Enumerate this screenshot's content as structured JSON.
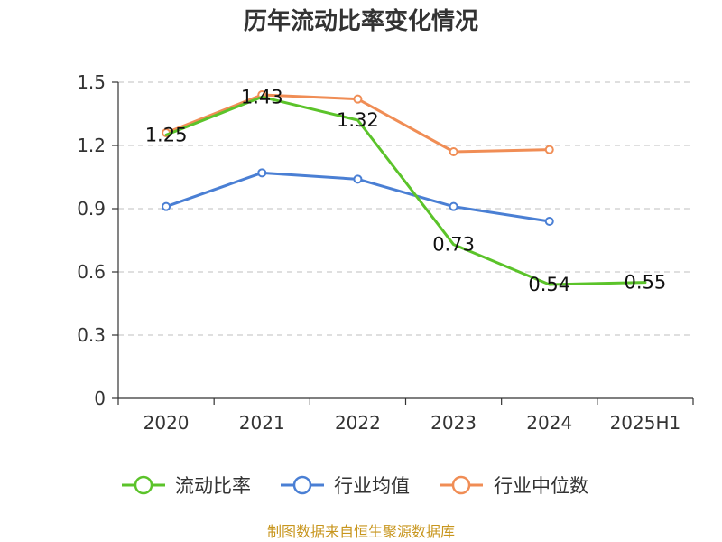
{
  "chart_data": {
    "type": "line",
    "title": "历年流动比率变化情况",
    "categories": [
      "2020",
      "2021",
      "2022",
      "2023",
      "2024",
      "2025H1"
    ],
    "y_ticks": [
      "0",
      "0.3",
      "0.6",
      "0.9",
      "1.2",
      "1.5"
    ],
    "ylim": [
      0,
      1.5
    ],
    "grid": true,
    "legend_position": "bottom",
    "series": [
      {
        "name": "流动比率",
        "color": "#5bc32a",
        "values": [
          1.25,
          1.43,
          1.32,
          0.73,
          0.54,
          0.55
        ],
        "labels": [
          "1.25",
          "1.43",
          "1.32",
          "0.73",
          "0.54",
          "0.55"
        ],
        "show_markers": false
      },
      {
        "name": "行业均值",
        "color": "#4a7fd4",
        "values": [
          0.91,
          1.07,
          1.04,
          0.91,
          0.84,
          null
        ],
        "show_markers": true
      },
      {
        "name": "行业中位数",
        "color": "#f08d55",
        "values": [
          1.26,
          1.44,
          1.42,
          1.17,
          1.18,
          null
        ],
        "show_markers": true
      }
    ]
  },
  "footer": {
    "source": "制图数据来自恒生聚源数据库"
  }
}
